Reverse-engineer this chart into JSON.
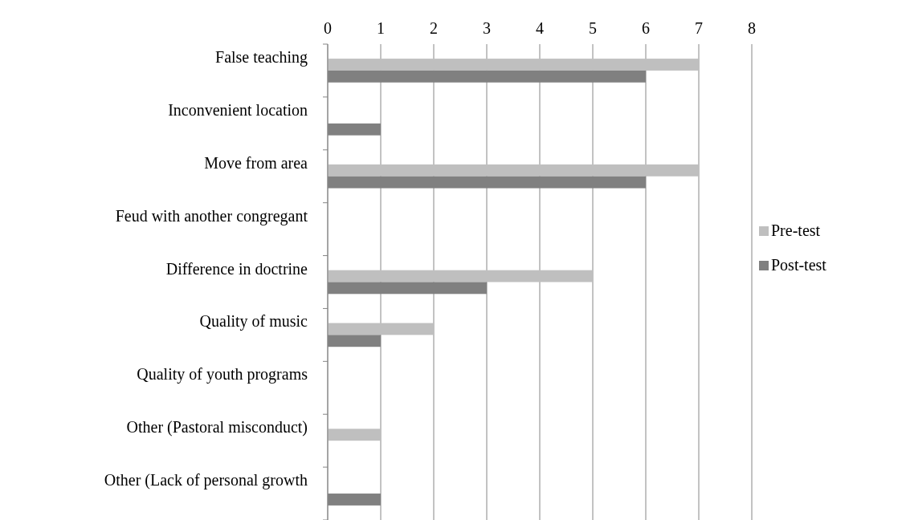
{
  "chart_data": {
    "type": "bar",
    "orientation": "horizontal",
    "categories": [
      "False teaching",
      "Inconvenient location",
      "Move from area",
      "Feud with another congregant",
      "Difference in doctrine",
      "Quality of music",
      "Quality of youth programs",
      "Other (Pastoral misconduct)",
      "Other (Lack of personal growth"
    ],
    "series": [
      {
        "name": "Pre-test",
        "color": "#bfbfbf",
        "values": [
          7,
          0,
          7,
          0,
          5,
          2,
          0,
          1,
          0
        ]
      },
      {
        "name": "Post-test",
        "color": "#808080",
        "values": [
          6,
          1,
          6,
          0,
          3,
          1,
          0,
          0,
          1
        ]
      }
    ],
    "xlim": [
      0,
      8
    ],
    "xticks": [
      0,
      1,
      2,
      3,
      4,
      5,
      6,
      7,
      8
    ],
    "grid": "x",
    "legend": "right"
  }
}
